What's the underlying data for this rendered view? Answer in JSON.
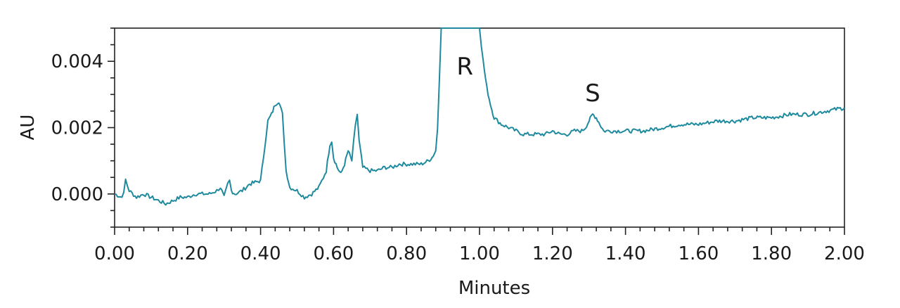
{
  "chart_data": {
    "type": "line",
    "title": "",
    "xlabel": "Minutes",
    "ylabel": "AU",
    "xlim": [
      0.0,
      2.0
    ],
    "ylim": [
      -0.001,
      0.005
    ],
    "x_ticks": [
      0.0,
      0.2,
      0.4,
      0.6,
      0.8,
      1.0,
      1.2,
      1.4,
      1.6,
      1.8,
      2.0
    ],
    "x_tick_labels": [
      "0.00",
      "0.20",
      "0.40",
      "0.60",
      "0.80",
      "1.00",
      "1.20",
      "1.40",
      "1.60",
      "1.80",
      "2.00"
    ],
    "y_ticks": [
      0.0,
      0.002,
      0.004
    ],
    "y_tick_labels": [
      "0.000",
      "0.002",
      "0.004"
    ],
    "grid": false,
    "legend": "none",
    "color": "#1f8a9e",
    "annotations": [
      {
        "text": "R",
        "x": 0.96,
        "y": 0.0036
      },
      {
        "text": "S",
        "x": 1.31,
        "y": 0.0028
      }
    ],
    "series": [
      {
        "x": [
          0.0,
          0.02,
          0.025,
          0.03,
          0.04,
          0.06,
          0.08,
          0.1,
          0.12,
          0.14,
          0.16,
          0.18,
          0.2,
          0.22,
          0.24,
          0.26,
          0.28,
          0.29,
          0.3,
          0.31,
          0.315,
          0.32,
          0.33,
          0.35,
          0.37,
          0.4,
          0.42,
          0.43,
          0.44,
          0.45,
          0.46,
          0.47,
          0.48,
          0.5,
          0.52,
          0.54,
          0.56,
          0.58,
          0.59,
          0.595,
          0.6,
          0.61,
          0.62,
          0.63,
          0.64,
          0.65,
          0.66,
          0.665,
          0.67,
          0.68,
          0.7,
          0.72,
          0.74,
          0.76,
          0.78,
          0.8,
          0.82,
          0.84,
          0.86,
          0.87,
          0.88,
          0.885,
          0.89,
          0.895,
          0.9,
          1.0,
          1.005,
          1.01,
          1.02,
          1.03,
          1.04,
          1.06,
          1.08,
          1.1,
          1.12,
          1.14,
          1.16,
          1.18,
          1.2,
          1.22,
          1.24,
          1.26,
          1.28,
          1.29,
          1.3,
          1.31,
          1.32,
          1.33,
          1.34,
          1.36,
          1.38,
          1.4,
          1.45,
          1.5,
          1.55,
          1.6,
          1.65,
          1.7,
          1.75,
          1.8,
          1.85,
          1.9,
          1.95,
          2.0
        ],
        "y": [
          0.0,
          -0.0001,
          0.0001,
          0.0004,
          0.0001,
          -0.0001,
          0.0,
          -0.0001,
          -0.0002,
          -0.0003,
          -0.0002,
          -0.0001,
          -0.0001,
          0.0,
          0.0,
          0.0,
          0.0001,
          0.0002,
          -0.0001,
          0.0003,
          0.0004,
          0.0001,
          0.0,
          0.0001,
          0.0003,
          0.0004,
          0.0022,
          0.0024,
          0.0027,
          0.0028,
          0.0024,
          0.0007,
          0.0002,
          0.0001,
          -0.0001,
          0.0,
          0.0002,
          0.0007,
          0.0015,
          0.0016,
          0.0011,
          0.0008,
          0.0006,
          0.0009,
          0.0013,
          0.001,
          0.0021,
          0.0024,
          0.0016,
          0.0008,
          0.0007,
          0.0007,
          0.0008,
          0.0008,
          0.0009,
          0.0009,
          0.0009,
          0.0009,
          0.001,
          0.0011,
          0.0013,
          0.002,
          0.0035,
          0.005,
          0.005,
          0.005,
          0.0045,
          0.004,
          0.0032,
          0.0027,
          0.0023,
          0.0021,
          0.002,
          0.0019,
          0.0018,
          0.0018,
          0.0018,
          0.0018,
          0.0019,
          0.0018,
          0.0018,
          0.0019,
          0.0019,
          0.002,
          0.0022,
          0.0024,
          0.0023,
          0.0021,
          0.0019,
          0.0019,
          0.0019,
          0.0019,
          0.0019,
          0.002,
          0.0021,
          0.0021,
          0.0022,
          0.0022,
          0.0023,
          0.0023,
          0.0024,
          0.0024,
          0.0025,
          0.0026
        ]
      }
    ]
  }
}
